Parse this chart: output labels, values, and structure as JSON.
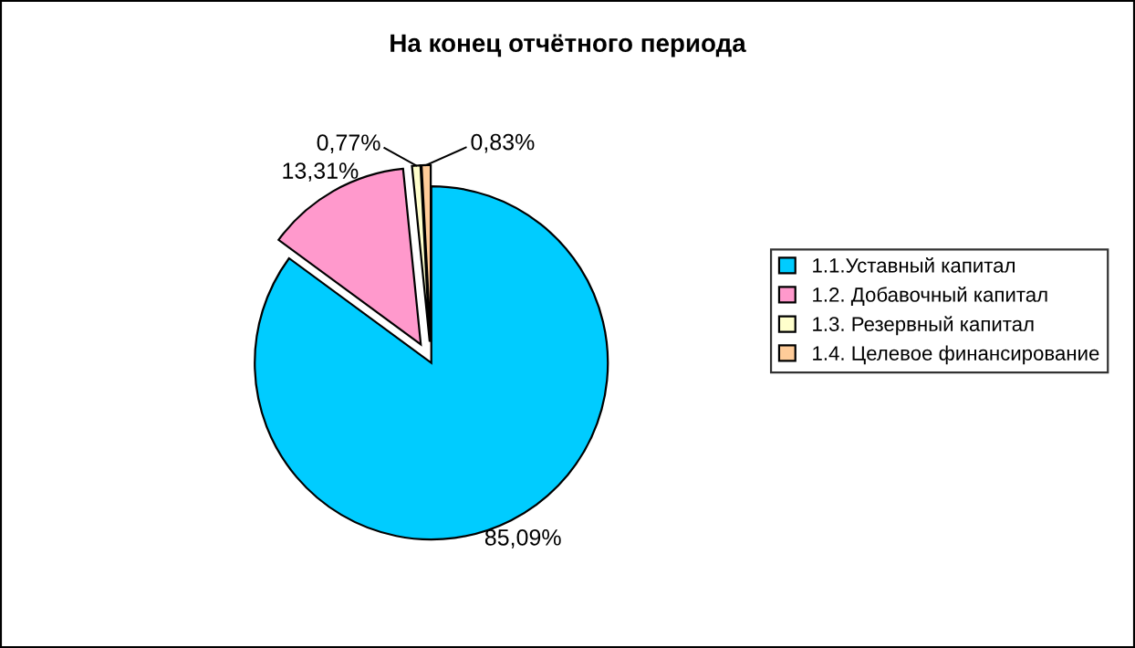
{
  "chart_data": {
    "type": "pie",
    "title": "На конец отчётного периода",
    "categories": [
      "1.1.Уставный капитал",
      "1.2. Добавочный капитал",
      "1.3. Резервный капитал",
      "1.4. Целевое финансирование"
    ],
    "values": [
      85.09,
      13.31,
      0.77,
      0.83
    ],
    "value_labels": [
      "85,09%",
      "13,31%",
      "0,77%",
      "0,83%"
    ],
    "colors": [
      "#00ccff",
      "#ff99cc",
      "#ffffcc",
      "#ffcc99"
    ],
    "legend": "right"
  }
}
